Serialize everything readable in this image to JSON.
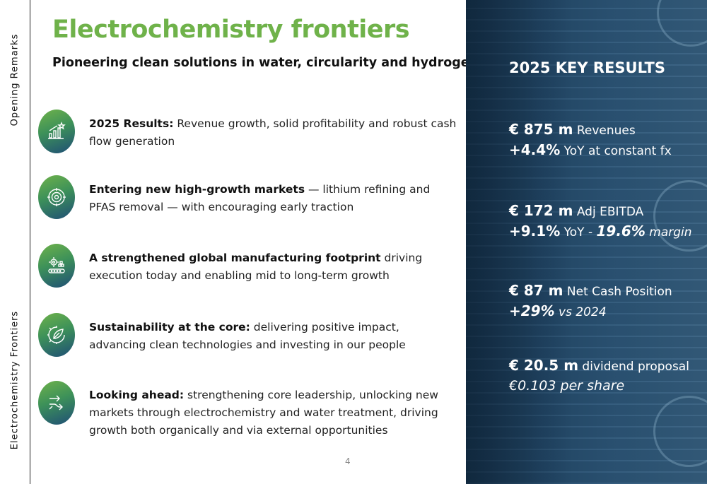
{
  "side": {
    "top_label": "Opening Remarks",
    "bottom_label": "Electrochemistry Frontiers"
  },
  "title": "Electrochemistry frontiers",
  "subtitle": "Pioneering clean solutions in water, circularity and hydrogen",
  "items": [
    {
      "icon": "growth-chart-icon",
      "bold": "2025 Results:",
      "text": " Revenue growth, solid profitability and robust cash flow generation"
    },
    {
      "icon": "target-icon",
      "bold": "Entering new high-growth markets",
      "text": " — lithium refining and PFAS removal — with encouraging early traction"
    },
    {
      "icon": "factory-gear-icon",
      "bold": "A strengthened global manufacturing footprint",
      "text": " driving execution today and enabling mid to long-term growth"
    },
    {
      "icon": "leaf-gear-icon",
      "bold": "Sustainability at the core:",
      "text": " delivering positive impact, advancing clean technologies and investing in our people"
    },
    {
      "icon": "forward-arrows-icon",
      "bold": "Looking ahead:",
      "text": " strengthening core leadership, unlocking new markets through electrochemistry and water treatment, driving growth both organically and via external opportunities"
    }
  ],
  "page_number": "4",
  "key_results": {
    "title": "2025 KEY RESULTS",
    "revenues": {
      "value": "€ 875 m",
      "label": " Revenues",
      "growth": "+4.4%",
      "growth_label": " YoY at constant fx"
    },
    "ebitda": {
      "value": "€ 172 m",
      "label": " Adj EBITDA",
      "growth": "+9.1%",
      "growth_label": " YoY - ",
      "margin": "19.6%",
      "margin_label": " margin"
    },
    "cash": {
      "value": "€ 87 m",
      "label": " Net Cash Position",
      "growth": "+29%",
      "growth_label": " vs 2024"
    },
    "dividend": {
      "value": "€ 20.5 m",
      "label": " dividend proposal",
      "per_share": "€0.103 per share"
    }
  },
  "colors": {
    "title_green": "#6fb24a",
    "panel_blue": "#244a6b",
    "icon_gradient_start": "#6fb24a",
    "icon_gradient_end": "#1f4e76"
  }
}
